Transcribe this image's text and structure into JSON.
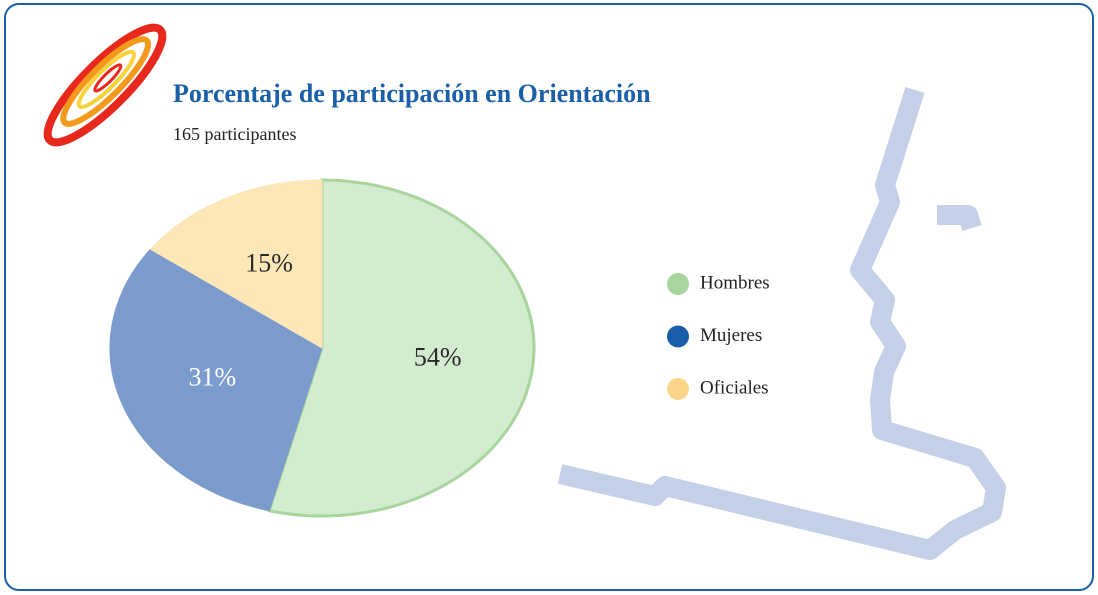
{
  "chart_data": {
    "type": "pie",
    "title": "Porcentaje de participación en Orientación",
    "subtitle": "165  participantes",
    "categories": [
      "Hombres",
      "Mujeres",
      "Oficiales"
    ],
    "values": [
      54,
      31,
      15
    ],
    "value_labels": [
      "54%",
      "31%",
      "15%"
    ],
    "colors": [
      "#a8d49e",
      "#1a5fa8",
      "#fdd58a"
    ],
    "fill_colors": [
      "#d3eccf",
      "#7b9bcc",
      "#fde6b7"
    ],
    "label_colors": [
      "#2a2a2a",
      "#ffffff",
      "#2a2a2a"
    ]
  }
}
